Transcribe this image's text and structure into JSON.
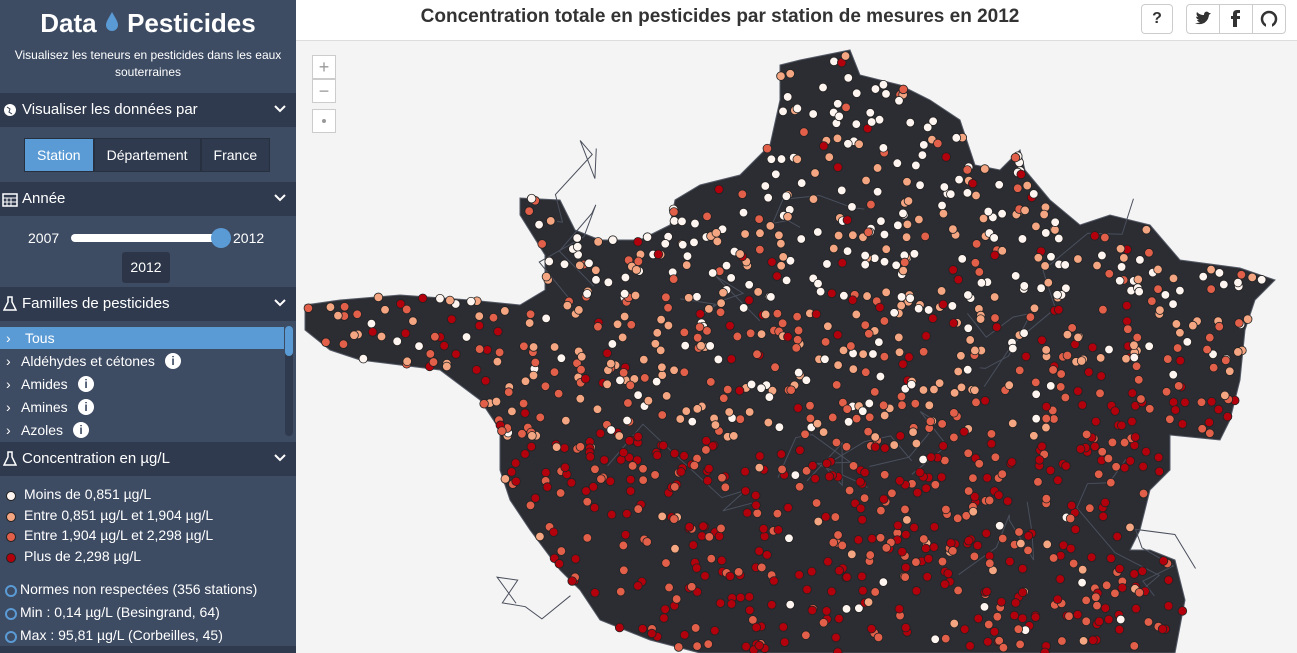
{
  "brand": {
    "left": "Data",
    "right": "Pesticides",
    "tagline": "Visualisez les teneurs en pesticides dans les eaux souterraines"
  },
  "view_by": {
    "heading": "Visualiser les données par",
    "buttons": [
      "Station",
      "Département",
      "France"
    ]
  },
  "year": {
    "heading": "Année",
    "min": 2007,
    "max": 2012,
    "selected": 2012
  },
  "families": {
    "heading": "Familles de pesticides",
    "items": [
      "Tous",
      "Aldéhydes et cétones",
      "Amides",
      "Amines",
      "Azoles"
    ]
  },
  "concentration": {
    "heading": "Concentration en µg/L",
    "legend": [
      "Moins de 0,851 µg/L",
      "Entre 0,851 µg/L et 1,904 µg/L",
      "Entre 1,904 µg/L et 2,298 µg/L",
      "Plus de 2,298 µg/L"
    ],
    "notes": [
      "Normes non respectées (356 stations)",
      "Min : 0,14 µg/L (Besingrand, 64)",
      "Max : 95,81 µg/L (Corbeilles, 45)"
    ]
  },
  "main": {
    "title": "Concentration totale en pesticides par station de mesures en 2012",
    "help": "?",
    "zoom_in": "+",
    "zoom_out": "−"
  }
}
